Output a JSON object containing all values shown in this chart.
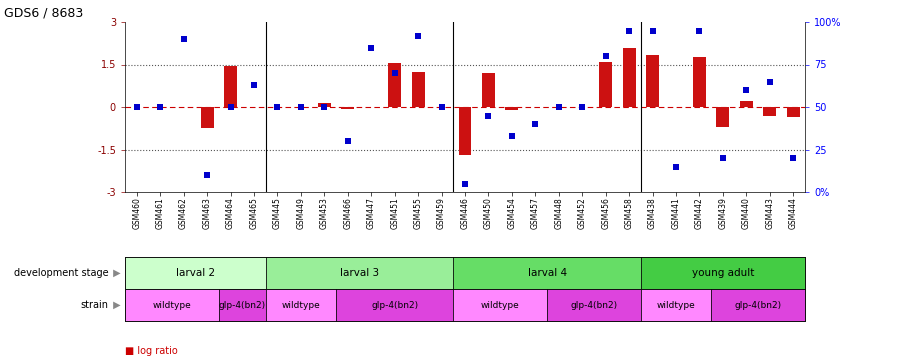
{
  "title": "GDS6 / 8683",
  "samples": [
    "GSM460",
    "GSM461",
    "GSM462",
    "GSM463",
    "GSM464",
    "GSM465",
    "GSM445",
    "GSM449",
    "GSM453",
    "GSM466",
    "GSM447",
    "GSM451",
    "GSM455",
    "GSM459",
    "GSM446",
    "GSM450",
    "GSM454",
    "GSM457",
    "GSM448",
    "GSM452",
    "GSM456",
    "GSM458",
    "GSM438",
    "GSM441",
    "GSM442",
    "GSM439",
    "GSM440",
    "GSM443",
    "GSM444"
  ],
  "log_ratio": [
    0.0,
    0.0,
    0.0,
    -0.75,
    1.45,
    0.0,
    0.0,
    0.0,
    0.15,
    -0.08,
    0.0,
    1.55,
    1.25,
    0.0,
    -1.7,
    1.2,
    -0.1,
    0.0,
    0.0,
    0.0,
    1.6,
    2.1,
    1.85,
    0.0,
    1.75,
    -0.7,
    0.2,
    -0.3,
    -0.35
  ],
  "percentile_raw": [
    50,
    50,
    90,
    10,
    50,
    63,
    50,
    50,
    50,
    30,
    85,
    70,
    92,
    50,
    5,
    45,
    33,
    40,
    50,
    50,
    80,
    95,
    95,
    15,
    95,
    20,
    60,
    65,
    20
  ],
  "ylim": [
    -3,
    3
  ],
  "y2lim": [
    0,
    100
  ],
  "ytick_vals": [
    -3,
    -1.5,
    0,
    1.5,
    3
  ],
  "ytick_labels": [
    "-3",
    "-1.5",
    "0",
    "1.5",
    "3"
  ],
  "y2tick_vals": [
    0,
    25,
    50,
    75,
    100
  ],
  "y2tick_labels": [
    "0%",
    "25",
    "50",
    "75",
    "100%"
  ],
  "dev_stages": [
    {
      "label": "larval 2",
      "start": 0,
      "end": 6,
      "color": "#ccffcc"
    },
    {
      "label": "larval 3",
      "start": 6,
      "end": 14,
      "color": "#99ee99"
    },
    {
      "label": "larval 4",
      "start": 14,
      "end": 22,
      "color": "#66dd66"
    },
    {
      "label": "young adult",
      "start": 22,
      "end": 29,
      "color": "#44cc44"
    }
  ],
  "strains": [
    {
      "label": "wildtype",
      "start": 0,
      "end": 4,
      "color": "#ff88ff"
    },
    {
      "label": "glp-4(bn2)",
      "start": 4,
      "end": 6,
      "color": "#dd44dd"
    },
    {
      "label": "wildtype",
      "start": 6,
      "end": 9,
      "color": "#ff88ff"
    },
    {
      "label": "glp-4(bn2)",
      "start": 9,
      "end": 14,
      "color": "#dd44dd"
    },
    {
      "label": "wildtype",
      "start": 14,
      "end": 18,
      "color": "#ff88ff"
    },
    {
      "label": "glp-4(bn2)",
      "start": 18,
      "end": 22,
      "color": "#dd44dd"
    },
    {
      "label": "wildtype",
      "start": 22,
      "end": 25,
      "color": "#ff88ff"
    },
    {
      "label": "glp-4(bn2)",
      "start": 25,
      "end": 29,
      "color": "#dd44dd"
    }
  ],
  "bar_color": "#cc1111",
  "dot_color": "#0000cc",
  "hline_color": "#cc0000",
  "dotted_color": "#555555",
  "legend_bar_color": "#cc0000",
  "legend_dot_color": "#0000bb"
}
